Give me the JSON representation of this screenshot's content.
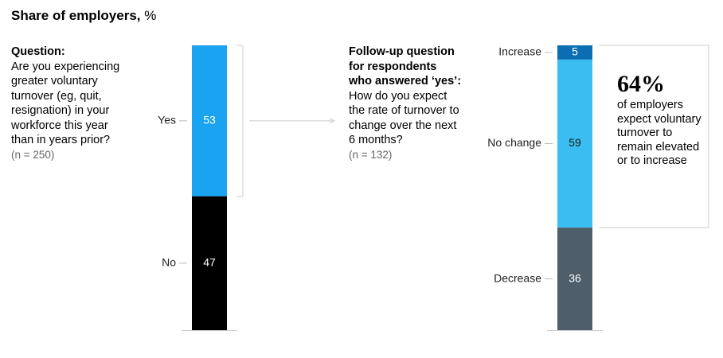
{
  "title": "Share of employers,",
  "title_unit": "%",
  "chart_data": [
    {
      "type": "stacked_bar",
      "heading": "Question:",
      "question": "Are you experiencing greater voluntary turnover (eg, quit, resignation) in your workforce this year than in years prior?",
      "sample": "(n = 250)",
      "categories": [
        "Yes",
        "No"
      ],
      "values": [
        53,
        47
      ],
      "colors": [
        "#1aa3f0",
        "#000000"
      ]
    },
    {
      "type": "stacked_bar",
      "heading": "Follow-up question for respondents who answered ‘yes’:",
      "question": "How do you expect the rate of turnover to change over the next 6 months?",
      "sample": "(n = 132)",
      "categories": [
        "Increase",
        "No change",
        "Decrease"
      ],
      "values": [
        5,
        59,
        36
      ],
      "colors": [
        "#0b6db3",
        "#3cbdf2",
        "#4e5e6b"
      ],
      "callout": {
        "value": 64,
        "value_label": "64%",
        "text": "of employers expect voluntary turnover to remain elevated or to increase"
      }
    }
  ]
}
